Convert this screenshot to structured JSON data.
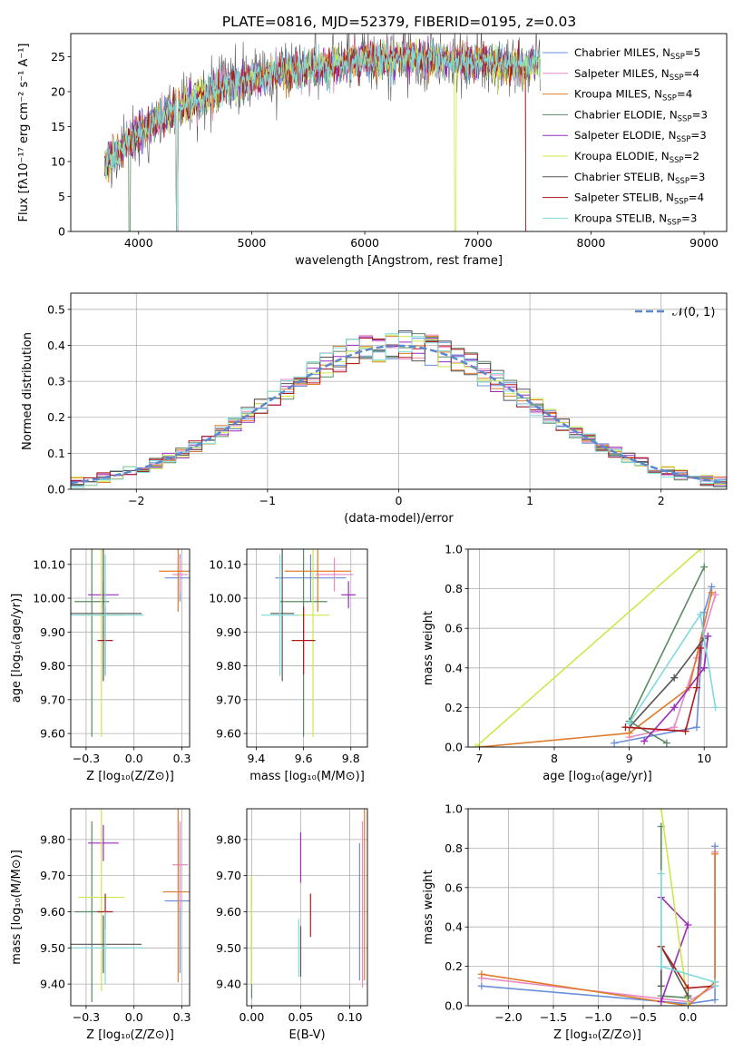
{
  "title": "PLATE=0816, MJD=52379, FIBERID=0195, z=0.03",
  "series": [
    {
      "name": "Chabrier MILES",
      "nssp": "5",
      "color": "#6a8fd8"
    },
    {
      "name": "Salpeter MILES",
      "nssp": "4",
      "color": "#e78ac3"
    },
    {
      "name": "Kroupa MILES",
      "nssp": "4",
      "color": "#e07b2a"
    },
    {
      "name": "Chabrier ELODIE",
      "nssp": "3",
      "color": "#5a8a62"
    },
    {
      "name": "Salpeter ELODIE",
      "nssp": "3",
      "color": "#9a2bbd"
    },
    {
      "name": "Kroupa ELODIE",
      "nssp": "2",
      "color": "#cde84a"
    },
    {
      "name": "Chabrier STELIB",
      "nssp": "3",
      "color": "#555555"
    },
    {
      "name": "Salpeter STELIB",
      "nssp": "4",
      "color": "#b01a1a"
    },
    {
      "name": "Kroupa STELIB",
      "nssp": "3",
      "color": "#7fdada"
    }
  ],
  "chart_data": [
    {
      "id": "spectrum",
      "type": "line",
      "xlabel": "wavelength [Angstrom, rest frame]",
      "ylabel": "Flux [fλ10⁻¹⁷ erg cm⁻² s⁻¹ A⁻¹]",
      "xlim": [
        3400,
        9200
      ],
      "ylim": [
        0,
        28.3
      ],
      "xticks": [
        4000,
        5000,
        6000,
        7000,
        8000,
        9000
      ],
      "yticks": [
        0,
        5,
        10,
        15,
        20,
        25
      ],
      "continuum": [
        [
          3700,
          9.5
        ],
        [
          3950,
          13.5
        ],
        [
          4100,
          15.5
        ],
        [
          4400,
          18
        ],
        [
          4800,
          21
        ],
        [
          5200,
          22.5
        ],
        [
          5600,
          23.5
        ],
        [
          6000,
          24.5
        ],
        [
          6500,
          24.7
        ],
        [
          7000,
          24.3
        ],
        [
          7400,
          23.5
        ],
        [
          7500,
          24
        ]
      ],
      "model_end": {
        "Chabrier MILES": 7420,
        "Salpeter MILES": 7420,
        "Kroupa MILES": 7420,
        "Salpeter STELIB": 7420,
        "Kroupa STELIB": 7550
      }
    },
    {
      "id": "residuals",
      "type": "histogram",
      "xlabel": "(data-model)/error",
      "ylabel": "Normed distribution",
      "xlim": [
        -2.5,
        2.5
      ],
      "ylim": [
        0,
        0.545
      ],
      "xticks": [
        -2,
        -1,
        0,
        1,
        2
      ],
      "yticks": [
        0.0,
        0.1,
        0.2,
        0.3,
        0.4,
        0.5
      ],
      "bin_width": 0.1,
      "reference_label": "𝒩(0, 1)",
      "grid": true
    },
    {
      "id": "age-vs-Z",
      "type": "scatter",
      "xlabel": "Z [log₁₀(Z/Z⊙)]",
      "ylabel": "age  [log₁₀(age/yr)]",
      "xlim": [
        -0.33,
        0.29
      ],
      "ylim": [
        9.56,
        10.145
      ],
      "xticks": [
        -0.25,
        0.0,
        0.25
      ],
      "yticks": [
        9.6,
        9.7,
        9.8,
        9.9,
        10.0,
        10.1
      ],
      "points": [
        {
          "x": 0.24,
          "y": 10.06,
          "xerr": 0.08,
          "yerr": 0.07
        },
        {
          "x": 0.24,
          "y": 10.07,
          "xerr": 0.04,
          "yerr": 0.05
        },
        {
          "x": 0.23,
          "y": 10.08,
          "xerr": 0.1,
          "yerr": 0.12
        },
        {
          "x": -0.22,
          "y": 9.99,
          "xerr": 0.09,
          "yerr": 0.4
        },
        {
          "x": -0.16,
          "y": 10.01,
          "xerr": 0.08,
          "yerr": 0.04
        },
        {
          "x": -0.17,
          "y": 9.95,
          "xerr": 0.12,
          "yerr": 0.36
        },
        {
          "x": -0.16,
          "y": 9.955,
          "xerr": 0.2,
          "yerr": 0.2
        },
        {
          "x": -0.15,
          "y": 9.875,
          "xerr": 0.04,
          "yerr": 0.1
        },
        {
          "x": -0.15,
          "y": 9.95,
          "xerr": 0.2,
          "yerr": 0.18
        }
      ]
    },
    {
      "id": "age-vs-mass",
      "type": "scatter",
      "xlabel": "mass [log₁₀(M/M⊙)]",
      "ylabel": "",
      "xlim": [
        9.36,
        9.87
      ],
      "ylim": [
        9.56,
        10.145
      ],
      "xticks": [
        9.4,
        9.6,
        9.8
      ],
      "yticks": [
        9.6,
        9.7,
        9.8,
        9.9,
        10.0,
        10.1
      ],
      "points": [
        {
          "x": 9.63,
          "y": 10.06,
          "xerr": 0.15,
          "yerr": 0.07
        },
        {
          "x": 9.73,
          "y": 10.07,
          "xerr": 0.08,
          "yerr": 0.05
        },
        {
          "x": 9.66,
          "y": 10.08,
          "xerr": 0.14,
          "yerr": 0.12
        },
        {
          "x": 9.6,
          "y": 9.99,
          "xerr": 0.1,
          "yerr": 0.4
        },
        {
          "x": 9.79,
          "y": 10.01,
          "xerr": 0.03,
          "yerr": 0.04
        },
        {
          "x": 9.64,
          "y": 9.95,
          "xerr": 0.07,
          "yerr": 0.36
        },
        {
          "x": 9.51,
          "y": 9.955,
          "xerr": 0.05,
          "yerr": 0.2
        },
        {
          "x": 9.6,
          "y": 9.875,
          "xerr": 0.05,
          "yerr": 0.1
        },
        {
          "x": 9.5,
          "y": 9.95,
          "xerr": 0.08,
          "yerr": 0.18
        }
      ]
    },
    {
      "id": "weight-vs-age",
      "type": "line",
      "xlabel": "age  [log₁₀(age/yr)]",
      "ylabel": "mass weight",
      "xlim": [
        6.85,
        10.3
      ],
      "ylim": [
        0,
        1
      ],
      "xticks": [
        7,
        8,
        9,
        10
      ],
      "yticks": [
        0.0,
        0.2,
        0.4,
        0.6,
        0.8,
        1.0
      ],
      "series": [
        {
          "x": [
            8.8,
            9.9,
            9.95,
            10.0,
            10.1
          ],
          "y": [
            0.02,
            0.1,
            0.4,
            0.68,
            0.81
          ]
        },
        {
          "x": [
            9.0,
            9.6,
            9.9,
            10.15
          ],
          "y": [
            0.05,
            0.1,
            0.45,
            0.77
          ]
        },
        {
          "x": [
            7.0,
            9.0,
            9.8,
            10.1
          ],
          "y": [
            0.0,
            0.07,
            0.3,
            0.78
          ]
        },
        {
          "x": [
            9.5,
            9.0,
            10.0
          ],
          "y": [
            0.02,
            0.13,
            0.91
          ]
        },
        {
          "x": [
            9.2,
            9.6,
            10.0,
            10.05
          ],
          "y": [
            0.03,
            0.2,
            0.4,
            0.56
          ]
        },
        {
          "x": [
            6.95,
            9.95
          ],
          "y": [
            0.0,
            1.0
          ]
        },
        {
          "x": [
            9.0,
            9.6,
            10.0
          ],
          "y": [
            0.1,
            0.35,
            0.55
          ]
        },
        {
          "x": [
            8.95,
            9.75,
            9.9,
            9.95
          ],
          "y": [
            0.1,
            0.08,
            0.3,
            0.5
          ]
        },
        {
          "x": [
            9.0,
            9.95,
            10.15
          ],
          "y": [
            0.12,
            0.67,
            0.2
          ]
        }
      ]
    },
    {
      "id": "mass-vs-Z",
      "type": "scatter",
      "xlabel": "Z [log₁₀(Z/Z⊙)]",
      "ylabel": "mass [log₁₀(M/M⊙)]",
      "xlim": [
        -0.33,
        0.29
      ],
      "ylim": [
        9.34,
        9.885
      ],
      "xticks": [
        -0.25,
        0.0,
        0.25
      ],
      "yticks": [
        9.4,
        9.5,
        9.6,
        9.7,
        9.8
      ],
      "points": [
        {
          "x": 0.24,
          "y": 9.63,
          "xerr": 0.08,
          "yerr": 0.2
        },
        {
          "x": 0.24,
          "y": 9.73,
          "xerr": 0.04,
          "yerr": 0.12
        },
        {
          "x": 0.23,
          "y": 9.655,
          "xerr": 0.08,
          "yerr": 0.25
        },
        {
          "x": -0.22,
          "y": 9.6,
          "xerr": 0.09,
          "yerr": 0.25
        },
        {
          "x": -0.16,
          "y": 9.79,
          "xerr": 0.08,
          "yerr": 0.05
        },
        {
          "x": -0.17,
          "y": 9.64,
          "xerr": 0.12,
          "yerr": 0.26
        },
        {
          "x": -0.16,
          "y": 9.51,
          "xerr": 0.2,
          "yerr": 0.08
        },
        {
          "x": -0.15,
          "y": 9.6,
          "xerr": 0.04,
          "yerr": 0.05
        },
        {
          "x": -0.15,
          "y": 9.5,
          "xerr": 0.2,
          "yerr": 0.1
        }
      ]
    },
    {
      "id": "mass-vs-ebv",
      "type": "scatter",
      "xlabel": "E(B-V)",
      "ylabel": "",
      "xlim": [
        -0.005,
        0.118
      ],
      "ylim": [
        9.34,
        9.885
      ],
      "xticks": [
        0.0,
        0.05,
        0.1
      ],
      "yticks": [
        9.4,
        9.5,
        9.6,
        9.7,
        9.8
      ],
      "points": [
        {
          "x": 0.11,
          "y": 9.6,
          "yerr": 0.19
        },
        {
          "x": 0.113,
          "y": 9.62,
          "yerr": 0.23
        },
        {
          "x": 0.115,
          "y": 9.66,
          "yerr": 0.25
        },
        {
          "x": 0.0,
          "y": 9.53,
          "yerr": 0.17
        },
        {
          "x": 0.05,
          "y": 9.75,
          "yerr": 0.07
        },
        {
          "x": 0.0,
          "y": 9.55,
          "yerr": 0.15
        },
        {
          "x": 0.05,
          "y": 9.49,
          "yerr": 0.07
        },
        {
          "x": 0.06,
          "y": 9.59,
          "yerr": 0.06
        },
        {
          "x": 0.048,
          "y": 9.5,
          "yerr": 0.08
        }
      ]
    },
    {
      "id": "weight-vs-Z",
      "type": "line",
      "xlabel": "Z [log₁₀(Z/Z⊙)]",
      "ylabel": "mass weight",
      "xlim": [
        -2.45,
        0.43
      ],
      "ylim": [
        0,
        1
      ],
      "xticks": [
        -2.0,
        -1.5,
        -1.0,
        -0.5,
        0.0
      ],
      "yticks": [
        0.0,
        0.2,
        0.4,
        0.6,
        0.8,
        1.0
      ],
      "series": [
        {
          "x": [
            -2.3,
            0.0,
            0.3,
            0.3
          ],
          "y": [
            0.1,
            0.01,
            0.03,
            0.81
          ]
        },
        {
          "x": [
            -2.3,
            0.0,
            0.3,
            0.3
          ],
          "y": [
            0.14,
            0.02,
            0.1,
            0.78
          ]
        },
        {
          "x": [
            -2.3,
            0.0,
            0.3,
            0.3
          ],
          "y": [
            0.16,
            0.0,
            0.12,
            0.77
          ]
        },
        {
          "x": [
            -0.3,
            -0.3,
            0.0
          ],
          "y": [
            0.91,
            0.05,
            0.04
          ]
        },
        {
          "x": [
            -0.3,
            0.0,
            -0.3
          ],
          "y": [
            0.02,
            0.41,
            0.55
          ]
        },
        {
          "x": [
            -0.3,
            0.0
          ],
          "y": [
            1.0,
            0.0
          ]
        },
        {
          "x": [
            -0.3,
            -0.3,
            0.0
          ],
          "y": [
            0.1,
            0.3,
            0.05
          ]
        },
        {
          "x": [
            -0.3,
            0.0,
            0.3
          ],
          "y": [
            0.3,
            0.09,
            0.1
          ]
        },
        {
          "x": [
            -0.3,
            -0.3,
            0.3,
            0.3
          ],
          "y": [
            0.67,
            0.2,
            0.12,
            0.1
          ]
        }
      ]
    }
  ]
}
